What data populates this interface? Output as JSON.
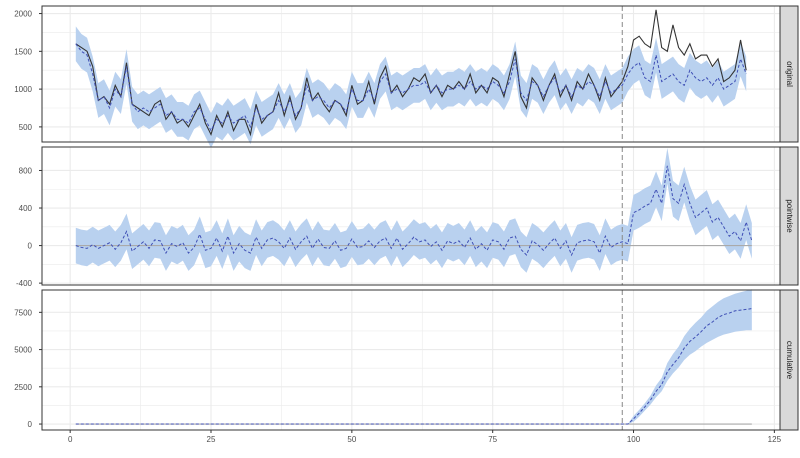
{
  "chart_data": {
    "type": "line",
    "facets": [
      {
        "strip_label": "original",
        "ylim": [
          300,
          2100
        ],
        "yticks": [
          500,
          1000,
          1500,
          2000
        ],
        "observed": [
          1600,
          1550,
          1500,
          1300,
          850,
          900,
          800,
          1050,
          900,
          1350,
          800,
          750,
          700,
          650,
          800,
          850,
          600,
          700,
          550,
          600,
          500,
          650,
          800,
          550,
          400,
          650,
          500,
          700,
          450,
          600,
          600,
          400,
          800,
          550,
          650,
          700,
          950,
          650,
          900,
          600,
          750,
          1150,
          850,
          950,
          800,
          700,
          850,
          800,
          650,
          1050,
          800,
          850,
          1100,
          800,
          1150,
          1300,
          950,
          1050,
          900,
          1000,
          1150,
          1100,
          1200,
          950,
          1050,
          900,
          1050,
          1000,
          1100,
          1000,
          1200,
          950,
          1050,
          950,
          1150,
          1100,
          900,
          1200,
          1500,
          900,
          750,
          1150,
          1050,
          850,
          1050,
          1200,
          900,
          1050,
          850,
          1100,
          1000,
          1200,
          1050,
          850,
          1150,
          900,
          1000,
          1100,
          1300,
          1650,
          1700,
          1600,
          1550,
          2050,
          1550,
          1500,
          1850,
          1550,
          1450,
          1600,
          1400,
          1450,
          1450,
          1300,
          1400,
          1100,
          1150,
          1250,
          1650,
          1250
        ],
        "predicted": [
          1600,
          1500,
          1450,
          1200,
          850,
          900,
          750,
          1000,
          900,
          1300,
          800,
          700,
          750,
          700,
          750,
          800,
          650,
          700,
          600,
          600,
          550,
          700,
          750,
          600,
          450,
          600,
          550,
          650,
          550,
          600,
          650,
          500,
          750,
          600,
          650,
          700,
          850,
          700,
          850,
          650,
          750,
          1050,
          850,
          900,
          850,
          750,
          850,
          800,
          700,
          1000,
          850,
          850,
          1000,
          850,
          1100,
          1200,
          950,
          1000,
          950,
          1000,
          1050,
          1050,
          1100,
          950,
          1050,
          950,
          1000,
          1000,
          1050,
          1000,
          1100,
          1000,
          1050,
          1000,
          1100,
          1050,
          950,
          1100,
          1400,
          950,
          850,
          1100,
          1050,
          900,
          1050,
          1150,
          950,
          1050,
          900,
          1050,
          1000,
          1100,
          1050,
          900,
          1100,
          950,
          1000,
          1050,
          1200,
          1300,
          1350,
          1150,
          1100,
          1450,
          1100,
          1150,
          1200,
          1100,
          1050,
          1250,
          1150,
          1100,
          1150,
          1050,
          1150,
          1000,
          1050,
          1100,
          1400,
          1200
        ],
        "band_half_width": 230
      },
      {
        "strip_label": "pointwise",
        "ylim": [
          -420,
          1050
        ],
        "yticks": [
          -400,
          0,
          400,
          800
        ],
        "predicted": [
          0,
          -20,
          -30,
          10,
          -30,
          0,
          30,
          -40,
          30,
          150,
          -60,
          -10,
          40,
          -30,
          60,
          50,
          -80,
          20,
          -10,
          30,
          -80,
          -20,
          120,
          -50,
          -30,
          80,
          -60,
          100,
          -80,
          20,
          -50,
          -80,
          90,
          -30,
          60,
          80,
          40,
          -30,
          80,
          -40,
          40,
          100,
          -30,
          70,
          -20,
          -30,
          50,
          -50,
          -30,
          70,
          -20,
          -10,
          50,
          -20,
          50,
          80,
          -30,
          80,
          -40,
          20,
          90,
          40,
          60,
          -10,
          40,
          -50,
          50,
          20,
          50,
          -20,
          80,
          -40,
          20,
          -50,
          60,
          40,
          -40,
          80,
          100,
          -40,
          -100,
          50,
          10,
          -50,
          20,
          80,
          -30,
          50,
          -100,
          30,
          50,
          60,
          40,
          -80,
          100,
          -20,
          20,
          40,
          20,
          350,
          380,
          420,
          450,
          600,
          450,
          850,
          500,
          450,
          650,
          450,
          300,
          350,
          400,
          250,
          300,
          200,
          100,
          150,
          50,
          250,
          50
        ],
        "band_half_width": 190
      },
      {
        "strip_label": "cumulative",
        "ylim": [
          -400,
          9000
        ],
        "yticks": [
          0,
          2500,
          5000,
          7500
        ],
        "predicted": [
          0,
          0,
          0,
          0,
          0,
          0,
          0,
          0,
          0,
          0,
          0,
          0,
          0,
          0,
          0,
          0,
          0,
          0,
          0,
          0,
          0,
          0,
          0,
          0,
          0,
          0,
          0,
          0,
          0,
          0,
          0,
          0,
          0,
          0,
          0,
          0,
          0,
          0,
          0,
          0,
          0,
          0,
          0,
          0,
          0,
          0,
          0,
          0,
          0,
          0,
          0,
          0,
          0,
          0,
          0,
          0,
          0,
          0,
          0,
          0,
          0,
          0,
          0,
          0,
          0,
          0,
          0,
          0,
          0,
          0,
          0,
          0,
          0,
          0,
          0,
          0,
          0,
          0,
          0,
          0,
          0,
          0,
          0,
          0,
          0,
          0,
          0,
          0,
          0,
          0,
          0,
          0,
          0,
          0,
          0,
          0,
          0,
          0,
          0,
          350,
          730,
          1150,
          1600,
          2200,
          2650,
          3500,
          4000,
          4450,
          5100,
          5550,
          5850,
          6200,
          6600,
          6850,
          7150,
          7350,
          7450,
          7600,
          7650,
          7700,
          7750
        ],
        "band_lower": [
          0,
          0,
          0,
          0,
          0,
          0,
          0,
          0,
          0,
          0,
          0,
          0,
          0,
          0,
          0,
          0,
          0,
          0,
          0,
          0,
          0,
          0,
          0,
          0,
          0,
          0,
          0,
          0,
          0,
          0,
          0,
          0,
          0,
          0,
          0,
          0,
          0,
          0,
          0,
          0,
          0,
          0,
          0,
          0,
          0,
          0,
          0,
          0,
          0,
          0,
          0,
          0,
          0,
          0,
          0,
          0,
          0,
          0,
          0,
          0,
          0,
          0,
          0,
          0,
          0,
          0,
          0,
          0,
          0,
          0,
          0,
          0,
          0,
          0,
          0,
          0,
          0,
          0,
          0,
          0,
          0,
          0,
          0,
          0,
          0,
          0,
          0,
          0,
          0,
          0,
          0,
          0,
          0,
          0,
          0,
          0,
          0,
          0,
          0,
          150,
          500,
          900,
          1300,
          1800,
          2200,
          2900,
          3400,
          3800,
          4300,
          4650,
          4900,
          5200,
          5450,
          5650,
          5850,
          6000,
          6100,
          6200,
          6250,
          6300,
          6300
        ],
        "band_upper": [
          0,
          0,
          0,
          0,
          0,
          0,
          0,
          0,
          0,
          0,
          0,
          0,
          0,
          0,
          0,
          0,
          0,
          0,
          0,
          0,
          0,
          0,
          0,
          0,
          0,
          0,
          0,
          0,
          0,
          0,
          0,
          0,
          0,
          0,
          0,
          0,
          0,
          0,
          0,
          0,
          0,
          0,
          0,
          0,
          0,
          0,
          0,
          0,
          0,
          0,
          0,
          0,
          0,
          0,
          0,
          0,
          0,
          0,
          0,
          0,
          0,
          0,
          0,
          0,
          0,
          0,
          0,
          0,
          0,
          0,
          0,
          0,
          0,
          0,
          0,
          0,
          0,
          0,
          0,
          0,
          0,
          0,
          0,
          0,
          0,
          0,
          0,
          0,
          0,
          0,
          0,
          0,
          0,
          0,
          0,
          0,
          0,
          0,
          0,
          550,
          950,
          1400,
          1900,
          2600,
          3100,
          4100,
          4700,
          5200,
          5900,
          6400,
          6800,
          7150,
          7600,
          7900,
          8200,
          8450,
          8600,
          8750,
          8850,
          8950,
          9050
        ]
      }
    ],
    "x_start": 1,
    "xlim": [
      -5,
      126
    ],
    "xticks": [
      0,
      25,
      50,
      75,
      100,
      125
    ],
    "intervention_x": 98,
    "grid": true,
    "colors": {
      "observed_line": "#333333",
      "predicted_line": "#3f4fb5",
      "band_fill": "#b9d1ef",
      "zero_line": "#aaaaaa",
      "vline": "#888888",
      "grid": "#ebebeb",
      "strip_bg": "#d9d9d9",
      "panel_border": "#333333"
    }
  }
}
